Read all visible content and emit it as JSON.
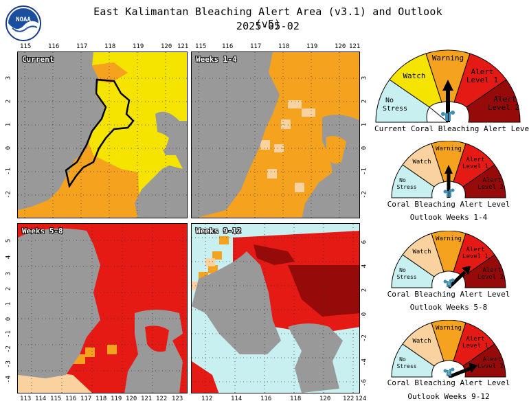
{
  "title_line1": "East Kalimantan Bleaching Alert Area (v3.1) and Outlook (v5)",
  "title_line2": "2025-05-02",
  "logo_text": "NOAA",
  "colors": {
    "no_stress": "#c8f0f0",
    "watch": "#f5e400",
    "warning": "#f5a31e",
    "alert1": "#e51a14",
    "alert2": "#960a0a",
    "outlook_watch": "#fad2a0",
    "land": "#999999"
  },
  "panels": {
    "current": {
      "label": "Current"
    },
    "w14": {
      "label": "Weeks 1-4"
    },
    "w58": {
      "label": "Weeks 5-8"
    },
    "w912": {
      "label": "Weeks 9-12"
    }
  },
  "axes": {
    "top_lon_a": [
      "115",
      "116",
      "117",
      "118",
      "119",
      "120",
      "121"
    ],
    "top_lon_b": [
      "115",
      "116",
      "117",
      "118",
      "119",
      "120",
      "121"
    ],
    "lat_a": [
      "3",
      "2",
      "1",
      "0",
      "-1",
      "-2"
    ],
    "lat_b": [
      "3",
      "2",
      "1",
      "0",
      "-1",
      "-2"
    ],
    "lat_c": [
      "5",
      "4",
      "3",
      "2",
      "1",
      "0",
      "-1",
      "-2",
      "-3",
      "-4"
    ],
    "lat_d": [
      "6",
      "4",
      "2",
      "0",
      "-2",
      "-4",
      "-6"
    ],
    "bottom_lon_c": [
      "113",
      "114",
      "115",
      "116",
      "117",
      "118",
      "119",
      "120",
      "121",
      "122",
      "123"
    ],
    "bottom_lon_d": [
      "112",
      "114",
      "116",
      "118",
      "120",
      "122",
      "124"
    ]
  },
  "gauge_labels": {
    "no_stress": [
      "No",
      "Stress"
    ],
    "watch": "Watch",
    "warning": "Warning",
    "alert1": [
      "Alert",
      "Level 1"
    ],
    "alert2": [
      "Alert",
      "Level 2"
    ]
  },
  "gauges": [
    {
      "caption1": "Current Coral Bleaching Alert Level",
      "caption2": "",
      "level": "Warning"
    },
    {
      "caption1": "Coral Bleaching Alert Level",
      "caption2": "Outlook Weeks 1-4",
      "level": "Warning"
    },
    {
      "caption1": "Coral Bleaching Alert Level",
      "caption2": "Outlook Weeks 5-8",
      "level": "Alert Level 1"
    },
    {
      "caption1": "Coral Bleaching Alert Level",
      "caption2": "Outlook Weeks 9-12",
      "level": "Alert Level 2"
    }
  ]
}
